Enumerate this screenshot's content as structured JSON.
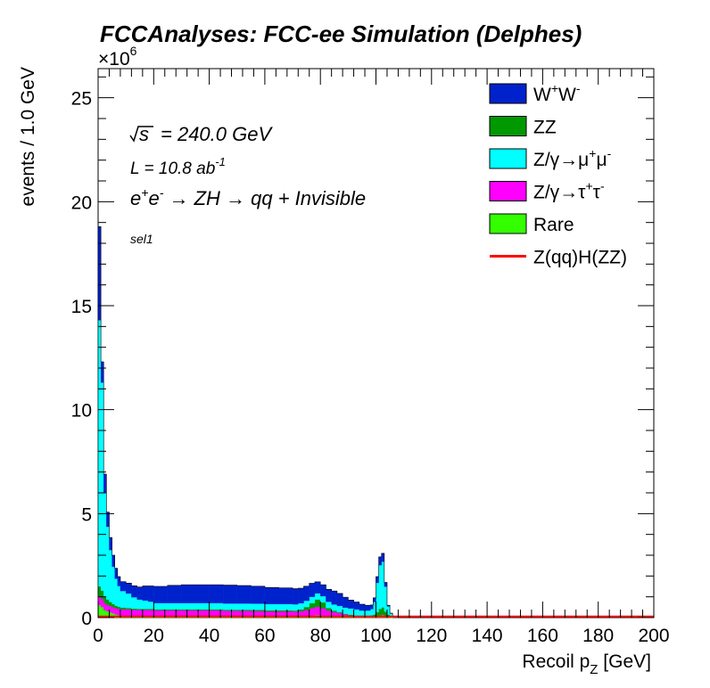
{
  "chart_data": {
    "type": "bar",
    "title": "FCCAnalyses: FCC-ee Simulation (Delphes)",
    "xlabel": "Recoil p_Z [GeV]",
    "ylabel": "events / 1.0 GeV",
    "y_multiplier": "×10^6",
    "xlim": [
      0,
      200
    ],
    "ylim": [
      0,
      26.4
    ],
    "x_ticks": [
      "0",
      "20",
      "40",
      "60",
      "80",
      "100",
      "120",
      "140",
      "160",
      "180",
      "200"
    ],
    "y_ticks": [
      "0",
      "5",
      "10",
      "15",
      "20",
      "25"
    ],
    "grid": false,
    "legend_position": "top-right",
    "annotations": {
      "sqrt_s": "= 240.0 GeV",
      "lumi": "L = 10.8 ab",
      "lumi_exp": "-1",
      "process": "e+e- → ZH → qq + Invisible",
      "selection": "sel1"
    },
    "bin_width": 1.0,
    "bins_edges_start": [
      0,
      1,
      2,
      3,
      4,
      5,
      6,
      7,
      8,
      10,
      12,
      14,
      16,
      18,
      20,
      25,
      30,
      35,
      40,
      45,
      50,
      55,
      60,
      65,
      70,
      72,
      74,
      76,
      78,
      80,
      82,
      84,
      86,
      88,
      90,
      92,
      94,
      96,
      98,
      99,
      100,
      101,
      102,
      103,
      104,
      105,
      106,
      108,
      110,
      120,
      140,
      160,
      180
    ],
    "series": [
      {
        "name": "Rare",
        "color": "#33ff00",
        "values": [
          0.6,
          0.5,
          0.35,
          0.3,
          0.25,
          0.2,
          0.15,
          0.12,
          0.1,
          0.08,
          0.06,
          0.05,
          0.05,
          0.05,
          0.05,
          0.05,
          0.05,
          0.05,
          0.05,
          0.05,
          0.05,
          0.04,
          0.04,
          0.04,
          0.04,
          0.05,
          0.06,
          0.1,
          0.12,
          0.1,
          0.06,
          0.05,
          0.04,
          0.03,
          0.03,
          0.02,
          0.02,
          0.02,
          0.02,
          0.03,
          0.05,
          0.1,
          0.12,
          0.08,
          0.03,
          0.01,
          0.0,
          0.0,
          0.0,
          0.0,
          0.0,
          0.0,
          0.0
        ]
      },
      {
        "name": "Z/γ→τ+τ-",
        "color": "#ff00ff",
        "values": [
          0.4,
          0.4,
          0.35,
          0.32,
          0.3,
          0.3,
          0.3,
          0.3,
          0.3,
          0.32,
          0.32,
          0.32,
          0.32,
          0.32,
          0.3,
          0.3,
          0.3,
          0.3,
          0.3,
          0.28,
          0.28,
          0.28,
          0.26,
          0.26,
          0.25,
          0.26,
          0.3,
          0.35,
          0.4,
          0.35,
          0.28,
          0.22,
          0.18,
          0.12,
          0.08,
          0.05,
          0.04,
          0.03,
          0.03,
          0.02,
          0.02,
          0.02,
          0.02,
          0.01,
          0.01,
          0.0,
          0.0,
          0.0,
          0.0,
          0.0,
          0.0,
          0.0,
          0.0
        ]
      },
      {
        "name": "ZZ",
        "color": "#009900",
        "values": [
          0.5,
          0.4,
          0.3,
          0.25,
          0.2,
          0.15,
          0.12,
          0.1,
          0.08,
          0.06,
          0.05,
          0.05,
          0.05,
          0.05,
          0.05,
          0.05,
          0.05,
          0.05,
          0.05,
          0.05,
          0.05,
          0.05,
          0.05,
          0.05,
          0.05,
          0.08,
          0.15,
          0.25,
          0.35,
          0.28,
          0.12,
          0.06,
          0.04,
          0.03,
          0.03,
          0.03,
          0.03,
          0.04,
          0.06,
          0.1,
          0.2,
          0.3,
          0.35,
          0.2,
          0.1,
          0.04,
          0.02,
          0.0,
          0.0,
          0.0,
          0.0,
          0.0,
          0.0
        ]
      },
      {
        "name": "Z/γ→μ+μ-",
        "color": "#00ffff",
        "values": [
          12.8,
          10.0,
          5.0,
          3.5,
          2.5,
          1.8,
          1.3,
          1.0,
          0.8,
          0.7,
          0.55,
          0.45,
          0.4,
          0.35,
          0.3,
          0.3,
          0.3,
          0.3,
          0.3,
          0.3,
          0.3,
          0.3,
          0.3,
          0.3,
          0.3,
          0.3,
          0.3,
          0.3,
          0.3,
          0.3,
          0.3,
          0.3,
          0.3,
          0.3,
          0.3,
          0.3,
          0.25,
          0.25,
          0.3,
          0.6,
          1.4,
          2.1,
          2.2,
          1.2,
          0.4,
          0.15,
          0.05,
          0.0,
          0.0,
          0.0,
          0.0,
          0.0,
          0.0
        ]
      },
      {
        "name": "W+W-",
        "color": "#0022cc",
        "values": [
          4.5,
          1.0,
          0.9,
          0.7,
          0.6,
          0.55,
          0.5,
          0.45,
          0.45,
          0.5,
          0.55,
          0.6,
          0.7,
          0.75,
          0.8,
          0.85,
          0.88,
          0.88,
          0.88,
          0.88,
          0.86,
          0.84,
          0.8,
          0.78,
          0.75,
          0.72,
          0.7,
          0.65,
          0.55,
          0.55,
          0.6,
          0.65,
          0.6,
          0.5,
          0.4,
          0.35,
          0.3,
          0.25,
          0.2,
          0.2,
          0.3,
          0.4,
          0.4,
          0.2,
          0.05,
          0.01,
          0.0,
          0.0,
          0.0,
          0.0,
          0.0,
          0.0,
          0.0
        ]
      }
    ],
    "signal": {
      "name": "Z(qq)H(ZZ)",
      "color": "#ff0000",
      "value": 0.01
    }
  }
}
